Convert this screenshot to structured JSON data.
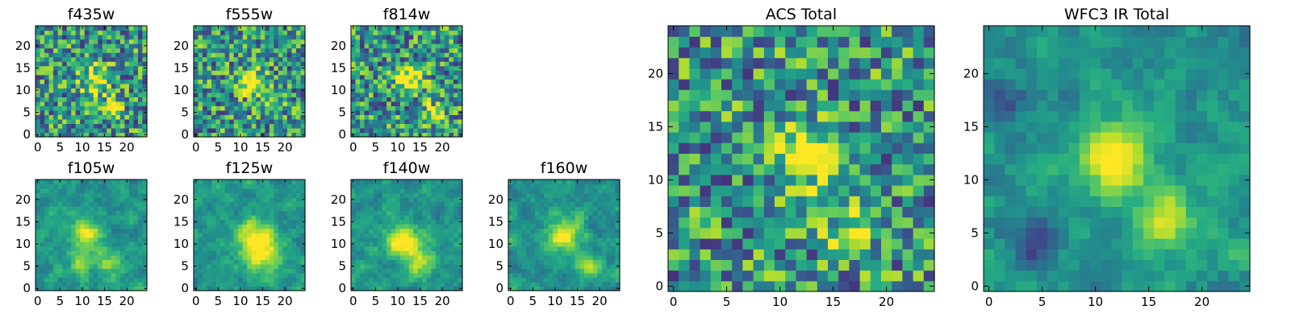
{
  "chart_data": [
    {
      "type": "heatmap",
      "title": "f435w",
      "colormap": "viridis",
      "xlim": [
        0,
        24
      ],
      "ylim": [
        0,
        24
      ],
      "x_ticks": [
        "0",
        "5",
        "10",
        "15",
        "20"
      ],
      "y_ticks": [
        "0",
        "5",
        "10",
        "15",
        "20"
      ],
      "features": [
        {
          "x": 13,
          "y": 12,
          "strength": 0.55,
          "sigma": 2.2
        },
        {
          "x": 17,
          "y": 6,
          "strength": 0.35,
          "sigma": 1.6
        }
      ],
      "grid": false
    },
    {
      "type": "heatmap",
      "title": "f555w",
      "colormap": "viridis",
      "xlim": [
        0,
        24
      ],
      "ylim": [
        0,
        24
      ],
      "x_ticks": [
        "0",
        "5",
        "10",
        "15",
        "20"
      ],
      "y_ticks": [
        "0",
        "5",
        "10",
        "15",
        "20"
      ],
      "features": [
        {
          "x": 12,
          "y": 12,
          "strength": 0.6,
          "sigma": 2.0
        },
        {
          "x": 17,
          "y": 6,
          "strength": 0.3,
          "sigma": 1.5
        }
      ],
      "grid": false
    },
    {
      "type": "heatmap",
      "title": "f814w",
      "colormap": "viridis",
      "xlim": [
        0,
        24
      ],
      "ylim": [
        0,
        24
      ],
      "x_ticks": [
        "0",
        "5",
        "10",
        "15",
        "20"
      ],
      "y_ticks": [
        "0",
        "5",
        "10",
        "15",
        "20"
      ],
      "features": [
        {
          "x": 13,
          "y": 12,
          "strength": 0.6,
          "sigma": 1.8
        },
        {
          "x": 18,
          "y": 5,
          "strength": 0.45,
          "sigma": 1.5
        }
      ],
      "grid": false
    },
    {
      "type": "heatmap",
      "title": "f105w",
      "colormap": "viridis",
      "xlim": [
        0,
        24
      ],
      "ylim": [
        0,
        24
      ],
      "x_ticks": [
        "0",
        "5",
        "10",
        "15",
        "20"
      ],
      "y_ticks": [
        "0",
        "5",
        "10",
        "15",
        "20"
      ],
      "features": [
        {
          "x": 11,
          "y": 12,
          "strength": 0.5,
          "sigma": 2.3
        },
        {
          "x": 16,
          "y": 6,
          "strength": 0.35,
          "sigma": 2.0
        },
        {
          "x": 9,
          "y": 5,
          "strength": 0.3,
          "sigma": 1.5
        }
      ],
      "grid": false
    },
    {
      "type": "heatmap",
      "title": "f125w",
      "colormap": "viridis",
      "xlim": [
        0,
        24
      ],
      "ylim": [
        0,
        24
      ],
      "x_ticks": [
        "0",
        "5",
        "10",
        "15",
        "20"
      ],
      "y_ticks": [
        "0",
        "5",
        "10",
        "15",
        "20"
      ],
      "features": [
        {
          "x": 13,
          "y": 11,
          "strength": 0.6,
          "sigma": 3.0
        },
        {
          "x": 16,
          "y": 7,
          "strength": 0.4,
          "sigma": 2.2
        }
      ],
      "grid": false
    },
    {
      "type": "heatmap",
      "title": "f140w",
      "colormap": "viridis",
      "xlim": [
        0,
        24
      ],
      "ylim": [
        0,
        24
      ],
      "x_ticks": [
        "0",
        "5",
        "10",
        "15",
        "20"
      ],
      "y_ticks": [
        "0",
        "5",
        "10",
        "15",
        "20"
      ],
      "features": [
        {
          "x": 11,
          "y": 11,
          "strength": 0.6,
          "sigma": 2.5
        },
        {
          "x": 15,
          "y": 6,
          "strength": 0.4,
          "sigma": 2.2
        }
      ],
      "grid": false
    },
    {
      "type": "heatmap",
      "title": "f160w",
      "colormap": "viridis",
      "xlim": [
        0,
        24
      ],
      "ylim": [
        0,
        24
      ],
      "x_ticks": [
        "0",
        "5",
        "10",
        "15",
        "20"
      ],
      "y_ticks": [
        "0",
        "5",
        "10",
        "15",
        "20"
      ],
      "features": [
        {
          "x": 12,
          "y": 12,
          "strength": 0.6,
          "sigma": 2.2
        },
        {
          "x": 17,
          "y": 5,
          "strength": 0.35,
          "sigma": 2.0
        }
      ],
      "grid": false
    },
    {
      "type": "heatmap",
      "title": "ACS Total",
      "colormap": "viridis",
      "xlim": [
        0,
        24
      ],
      "ylim": [
        0,
        24
      ],
      "x_ticks": [
        "0",
        "5",
        "10",
        "15",
        "20"
      ],
      "y_ticks": [
        "0",
        "5",
        "10",
        "15",
        "20"
      ],
      "features": [
        {
          "x": 12.5,
          "y": 12.5,
          "strength": 0.6,
          "sigma": 2.0
        },
        {
          "x": 17,
          "y": 6,
          "strength": 0.4,
          "sigma": 1.8
        }
      ],
      "grid": false
    },
    {
      "type": "heatmap",
      "title": "WFC3 IR Total",
      "colormap": "viridis",
      "xlim": [
        0,
        24
      ],
      "ylim": [
        0,
        24
      ],
      "x_ticks": [
        "0",
        "5",
        "10",
        "15",
        "20"
      ],
      "y_ticks": [
        "0",
        "5",
        "10",
        "15",
        "20"
      ],
      "features": [
        {
          "x": 12,
          "y": 12,
          "strength": 0.7,
          "sigma": 2.0
        },
        {
          "x": 16.5,
          "y": 6,
          "strength": 0.45,
          "sigma": 1.8
        },
        {
          "x": 4,
          "y": 4,
          "strength": -0.5,
          "sigma": 1.3
        },
        {
          "x": 1,
          "y": 18,
          "strength": -0.45,
          "sigma": 1.2
        }
      ],
      "grid": false
    }
  ]
}
